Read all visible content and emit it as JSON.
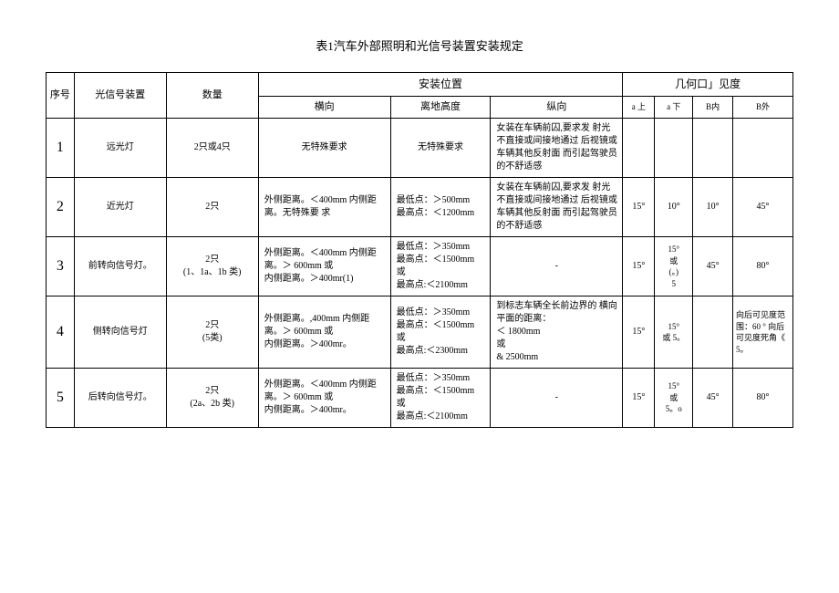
{
  "title": "表1汽车外部照明和光信号装置安装规定",
  "headers": {
    "seq": "序号",
    "name": "光信号装置",
    "qty": "数量",
    "install": "安装位置",
    "horiz": "横向",
    "height": "离地高度",
    "vert": "纵向",
    "geo": "几何口」见度",
    "a_up": "a 上",
    "a_down": "a 下",
    "b_in": "B内",
    "b_out": "B外"
  },
  "rows": [
    {
      "seq": "1",
      "name": "远光灯",
      "qty": "2只或4只",
      "horiz": "无特殊要求",
      "height": "无特殊要求",
      "vert": "女装在车辆前囚,要求发 射光不直接或间接地通过 后视镜或车辆其他反射面 而引起驾驶员的不舒适感",
      "a_up": "",
      "a_down": "",
      "b_in": "",
      "b_out": ""
    },
    {
      "seq": "2",
      "name": "近光灯",
      "qty": "2只",
      "horiz": "外侧距离。＜400mm 内侧距离。无特殊要 求",
      "height": "最低点：＞500mm\n最高点：＜1200mm",
      "vert": "女装在车辆前囚,要求发 射光不直接或间接地通过 后视镜或车辆其他反射面 而引起驾驶员的不舒适感",
      "a_up": "15°",
      "a_down": "10°",
      "b_in": "10°",
      "b_out": "45°"
    },
    {
      "seq": "3",
      "name": "前转向信号灯。",
      "qty": "2只\n(1、1a、1b 类)",
      "horiz": "外侧距离。＜400mm 内侧距离。＞ 600mm 或\n内侧距离。＞400mr(1)",
      "height": "最低点：＞350mm\n最高点：＜1500mm\n或\n最高点:＜2100mm",
      "vert": "-",
      "a_up": "15°",
      "a_down": "15°\n或\n(。)\n5",
      "b_in": "45°",
      "b_out": "80°"
    },
    {
      "seq": "4",
      "name": "侧转向信号灯",
      "qty": "2只\n(5类)",
      "horiz": "外侧距离。,400mm 内侧距离。＞ 600mm 或\n内侧距离。＞400mr。",
      "height": "最低点：＞350mm\n最高点：＜1500mm\n或\n最高点:＜2300mm",
      "vert": "到标志车辆全长前边界的 横向平面的距离：\n＜ 1800mm\n或\n& 2500mm",
      "a_up": "15°",
      "a_down": "15°\n或 5。",
      "b_in": "",
      "b_out": "向后可见度范围：60 ° 向后可见度死角《 5。"
    },
    {
      "seq": "5",
      "name": "后转向信号灯。",
      "qty": "2只\n(2a、2b 类)",
      "horiz": "外侧距离。＜400mm 内侧距离。＞ 600mm 或\n内侧距离。＞400mr。",
      "height": "最低点：＞350mm\n最高点：＜1500mm\n或\n最高点:＜2100mm",
      "vert": "-",
      "a_up": "15°",
      "a_down": "15°\n或\n5。o",
      "b_in": "45°",
      "b_out": "80°"
    }
  ],
  "text_color": "#000000",
  "border_color": "#000000",
  "background_color": "#ffffff",
  "title_fontsize": 13,
  "body_fontsize": 10,
  "seq_fontsize": 16
}
